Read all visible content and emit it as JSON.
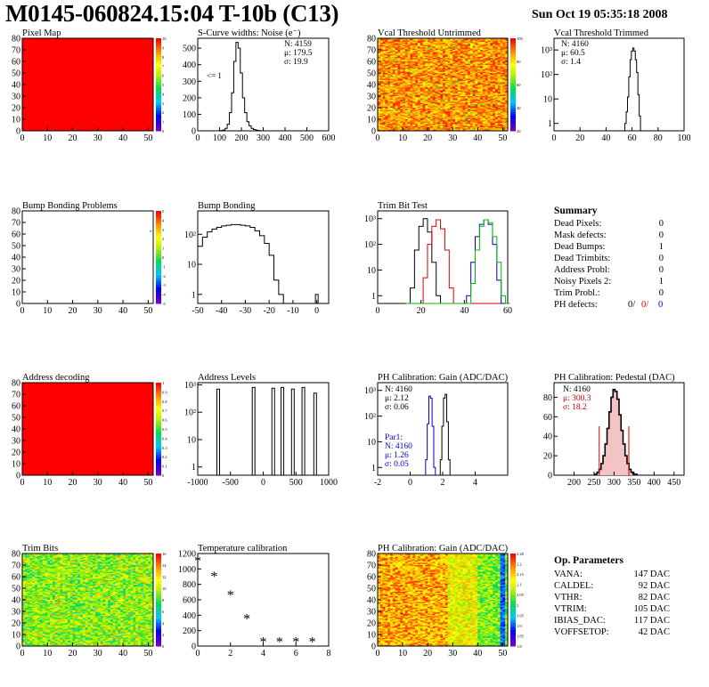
{
  "header": {
    "title": "M0145-060824.15:04 T-10b (C13)",
    "date": "Sun Oct 19 05:35:18 2008"
  },
  "colors": {
    "map_red": "#ff0000",
    "trim_black": "#000000",
    "trim_red": "#d40000",
    "trim_blue": "#0000cc",
    "trim_green": "#00bb00",
    "pedestal_red": "#cc0000"
  },
  "summary": {
    "title": "Summary",
    "rows": [
      {
        "label": "Dead Pixels:",
        "value": "0"
      },
      {
        "label": "Mask defects:",
        "value": "0"
      },
      {
        "label": "Dead Bumps:",
        "value": "1"
      },
      {
        "label": "Dead Trimbits:",
        "value": "0"
      },
      {
        "label": "Address Probl:",
        "value": "0"
      },
      {
        "label": "Noisy Pixels 2:",
        "value": "1"
      },
      {
        "label": "Trim Probl.:",
        "value": "0"
      }
    ],
    "ph": {
      "label": "PH defects:",
      "v1": "0/",
      "v2": "0/",
      "v3": "0"
    }
  },
  "op_params": {
    "title": "Op. Parameters",
    "rows": [
      {
        "label": "VANA:",
        "value": "147 DAC"
      },
      {
        "label": "CALDEL:",
        "value": "92 DAC"
      },
      {
        "label": "VTHR:",
        "value": "82 DAC"
      },
      {
        "label": "VTRIM:",
        "value": "105 DAC"
      },
      {
        "label": "IBIAS_DAC:",
        "value": "117 DAC"
      },
      {
        "label": "VOFFSETOP:",
        "value": "42 DAC"
      }
    ]
  },
  "chart_data": [
    {
      "id": "pixel-map",
      "type": "heatmap",
      "title": "Pixel Map",
      "xlim": [
        0,
        52
      ],
      "ylim": [
        0,
        80
      ],
      "xticks": [
        "0",
        "10",
        "20",
        "30",
        "40",
        "50"
      ],
      "yticks": [
        "0",
        "10",
        "20",
        "30",
        "40",
        "50",
        "60",
        "70",
        "80"
      ],
      "zlim": [
        0,
        10
      ],
      "zticks": [
        "0",
        "1",
        "2",
        "3",
        "4",
        "5",
        "6",
        "7",
        "8",
        "9",
        "10"
      ],
      "fill": "uniform red (all pixels at maximum)"
    },
    {
      "id": "scurve-noise",
      "type": "bar",
      "title": "S-Curve widths: Noise (e⁻)",
      "xlim": [
        0,
        600
      ],
      "ylim": [
        0,
        560
      ],
      "xticks": [
        "0",
        "100",
        "200",
        "300",
        "400",
        "500",
        "600"
      ],
      "yticks": [
        "0",
        "100",
        "200",
        "300",
        "400",
        "500"
      ],
      "stats": [
        "N: 4159",
        "μ: 179.5",
        "σ: 19.9"
      ],
      "annotation": "<= 1",
      "x": [
        110,
        120,
        130,
        140,
        150,
        160,
        170,
        180,
        190,
        200,
        210,
        220,
        230,
        240,
        250,
        260,
        270,
        280,
        290
      ],
      "values": [
        2,
        5,
        15,
        40,
        110,
        230,
        420,
        535,
        500,
        350,
        200,
        110,
        55,
        30,
        15,
        8,
        4,
        2,
        1
      ]
    },
    {
      "id": "vcal-untrimmed",
      "type": "heatmap",
      "title": "Vcal Threshold Untrimmed",
      "xlim": [
        0,
        52
      ],
      "ylim": [
        0,
        80
      ],
      "xticks": [
        "0",
        "10",
        "20",
        "30",
        "40",
        "50"
      ],
      "yticks": [
        "0",
        "10",
        "20",
        "30",
        "40",
        "50",
        "60",
        "70",
        "80"
      ],
      "zticks": [
        "100",
        "80",
        "60",
        "40",
        "20"
      ],
      "fill": "mostly orange/yellow noise, few green pixels"
    },
    {
      "id": "vcal-trimmed",
      "type": "bar",
      "title": "Vcal Threshold Trimmed",
      "log_y": true,
      "xlim": [
        0,
        100
      ],
      "xticks": [
        "0",
        "20",
        "40",
        "60",
        "80",
        "100"
      ],
      "yticks": [
        "1",
        "10",
        "10²",
        "10³"
      ],
      "stats": [
        "N: 4160",
        "μ: 60.5",
        "σ: 1.4"
      ],
      "x": [
        55,
        56,
        57,
        58,
        59,
        60,
        61,
        62,
        63,
        64,
        65,
        66
      ],
      "values": [
        1,
        3,
        12,
        80,
        400,
        900,
        1200,
        900,
        400,
        120,
        15,
        2
      ]
    },
    {
      "id": "bump-bonding-problems",
      "type": "heatmap",
      "title": "Bump Bonding Problems",
      "xlim": [
        0,
        52
      ],
      "ylim": [
        0,
        80
      ],
      "xticks": [
        "0",
        "10",
        "20",
        "30",
        "40",
        "50"
      ],
      "yticks": [
        "0",
        "10",
        "20",
        "30",
        "40",
        "50",
        "60",
        "70",
        "80"
      ],
      "zticks": [
        "5",
        "4",
        "3",
        "2",
        "1",
        "0",
        "-1",
        "-2",
        "-3",
        "-4",
        "-5"
      ],
      "fill": "empty except one pixel near (51,63)"
    },
    {
      "id": "bump-bonding",
      "type": "bar",
      "title": "Bump Bonding",
      "log_y": true,
      "xlim": [
        -50,
        5
      ],
      "xticks": [
        "-50",
        "-40",
        "-30",
        "-20",
        "-10",
        "0"
      ],
      "yticks": [
        "1",
        "10",
        "10²"
      ],
      "x": [
        -49,
        -47,
        -45,
        -43,
        -41,
        -39,
        -37,
        -35,
        -33,
        -31,
        -29,
        -27,
        -25,
        -23,
        -21,
        -19,
        -17,
        -15,
        0
      ],
      "values": [
        40,
        80,
        120,
        150,
        170,
        190,
        200,
        210,
        210,
        200,
        190,
        170,
        130,
        90,
        50,
        20,
        3,
        1,
        1
      ]
    },
    {
      "id": "trim-bit-test",
      "type": "line",
      "title": "Trim Bit Test",
      "log_y": true,
      "xlim": [
        0,
        60
      ],
      "xticks": [
        "0",
        "20",
        "40",
        "60"
      ],
      "yticks": [
        "1",
        "10",
        "10²",
        "10³"
      ],
      "x": [
        14,
        16,
        18,
        20,
        22,
        24,
        26,
        28,
        30,
        32,
        34,
        36,
        38,
        40,
        42,
        44,
        46,
        48,
        50,
        52,
        54,
        56,
        58,
        60
      ],
      "series": [
        {
          "color": "#000000",
          "values": [
            0,
            2,
            60,
            500,
            1000,
            300,
            20,
            1,
            0,
            0,
            0,
            0,
            0,
            0,
            0,
            0,
            0,
            0,
            0,
            0,
            0,
            0,
            0,
            0
          ]
        },
        {
          "color": "#d40000",
          "values": [
            0,
            0,
            0,
            0,
            5,
            100,
            500,
            900,
            400,
            60,
            2,
            0,
            0,
            0,
            0,
            0,
            0,
            0,
            0,
            0,
            0,
            0,
            0,
            0
          ]
        },
        {
          "color": "#0000cc",
          "values": [
            0,
            0,
            0,
            0,
            0,
            0,
            0,
            0,
            0,
            0,
            0,
            0,
            0,
            0,
            1,
            20,
            200,
            600,
            900,
            600,
            100,
            4,
            0,
            0
          ]
        },
        {
          "color": "#00bb00",
          "values": [
            0,
            0,
            0,
            0,
            0,
            0,
            0,
            0,
            0,
            0,
            0,
            0,
            0,
            0,
            0,
            3,
            60,
            500,
            900,
            700,
            200,
            20,
            1,
            0
          ]
        }
      ]
    },
    {
      "id": "address-decoding",
      "type": "heatmap",
      "title": "Address decoding",
      "xlim": [
        0,
        52
      ],
      "ylim": [
        0,
        80
      ],
      "xticks": [
        "0",
        "10",
        "20",
        "30",
        "40",
        "50"
      ],
      "yticks": [
        "0",
        "10",
        "20",
        "30",
        "40",
        "50",
        "60",
        "70",
        "80"
      ],
      "zticks": [
        "0",
        "0.1",
        "0.2",
        "0.3",
        "0.4",
        "0.5",
        "0.6",
        "0.7",
        "0.8",
        "0.9",
        "1"
      ],
      "fill": "uniform red (all pixels at maximum)"
    },
    {
      "id": "address-levels",
      "type": "bar",
      "title": "Address Levels",
      "log_y": true,
      "xlim": [
        -1000,
        1000
      ],
      "xticks": [
        "-1000",
        "-500",
        "0",
        "500",
        "1000"
      ],
      "yticks": [
        "1",
        "10",
        "10²",
        "10³"
      ],
      "x": [
        -680,
        -140,
        160,
        300,
        460,
        620,
        800
      ],
      "values": [
        700,
        800,
        750,
        800,
        700,
        800,
        500
      ]
    },
    {
      "id": "ph-gain",
      "type": "bar",
      "title": "PH Calibration: Gain (ADC/DAC)",
      "log_y": true,
      "xlim": [
        -2,
        6
      ],
      "xticks": [
        "-2",
        "0",
        "2",
        "4"
      ],
      "yticks": [
        "1",
        "10",
        "10²",
        "10³"
      ],
      "stats": [
        "N: 4160",
        "μ: 2.12",
        "σ: 0.06"
      ],
      "par1": {
        "label": "Par1:",
        "stats": [
          "N: 4160",
          "μ: 1.26",
          "σ: 0.05"
        ]
      },
      "series": [
        {
          "color": "#000000",
          "x": [
            1.9,
            2.0,
            2.1,
            2.2,
            2.3,
            2.4
          ],
          "values": [
            2,
            40,
            500,
            700,
            60,
            2
          ]
        },
        {
          "color": "#0000cc",
          "x": [
            1.0,
            1.1,
            1.2,
            1.3,
            1.4,
            1.5
          ],
          "values": [
            2,
            50,
            600,
            500,
            40,
            1
          ]
        }
      ]
    },
    {
      "id": "ph-pedestal",
      "type": "bar",
      "title": "PH Calibration: Pedestal (DAC)",
      "xlim": [
        150,
        475
      ],
      "ylim": [
        0,
        95
      ],
      "xticks": [
        "200",
        "250",
        "300",
        "350",
        "400",
        "450"
      ],
      "yticks": [
        "0",
        "20",
        "40",
        "60",
        "80"
      ],
      "stats": [
        "N: 4160",
        "μ: 300.3",
        "σ: 18.2"
      ],
      "x": [
        255,
        260,
        265,
        270,
        275,
        280,
        285,
        290,
        295,
        300,
        305,
        310,
        315,
        320,
        325,
        330,
        335,
        340,
        345,
        350,
        355
      ],
      "values": [
        1,
        3,
        6,
        12,
        20,
        32,
        48,
        65,
        80,
        88,
        86,
        78,
        62,
        46,
        32,
        20,
        12,
        6,
        3,
        1,
        1
      ]
    },
    {
      "id": "trim-bits",
      "type": "heatmap",
      "title": "Trim Bits",
      "xlim": [
        0,
        52
      ],
      "ylim": [
        0,
        80
      ],
      "xticks": [
        "0",
        "10",
        "20",
        "30",
        "40",
        "50"
      ],
      "yticks": [
        "0",
        "10",
        "20",
        "30",
        "40",
        "50",
        "60",
        "70",
        "80"
      ],
      "zticks": [
        "0",
        "2",
        "4",
        "6",
        "8",
        "10",
        "12",
        "14",
        "16"
      ],
      "fill": "mostly green noise with yellow/orange spots"
    },
    {
      "id": "temperature-calibration",
      "type": "scatter",
      "title": "Temperature calibration",
      "xlim": [
        0,
        8
      ],
      "ylim": [
        0,
        1200
      ],
      "xticks": [
        "0",
        "2",
        "4",
        "6",
        "8"
      ],
      "yticks": [
        "0",
        "200",
        "400",
        "600",
        "800",
        "1000",
        "1200"
      ],
      "x": [
        0,
        1,
        2,
        3,
        4,
        5,
        6,
        7
      ],
      "y": [
        1100,
        900,
        660,
        350,
        50,
        50,
        50,
        50
      ]
    },
    {
      "id": "ph-gain-map",
      "type": "heatmap",
      "title": "PH Calibration: Gain (ADC/DAC)",
      "xlim": [
        0,
        52
      ],
      "ylim": [
        0,
        80
      ],
      "xticks": [
        "0",
        "10",
        "20",
        "30",
        "40",
        "50"
      ],
      "yticks": [
        "0",
        "10",
        "20",
        "30",
        "40",
        "50",
        "60",
        "70",
        "80"
      ],
      "zticks": [
        "2.28",
        "2.2",
        "2.15",
        "2.1",
        "2.05",
        "2",
        "1.95",
        "1.9",
        "1.85",
        "1.8"
      ],
      "fill": "red/orange left, green/yellow right, columns near 50 blue"
    }
  ]
}
